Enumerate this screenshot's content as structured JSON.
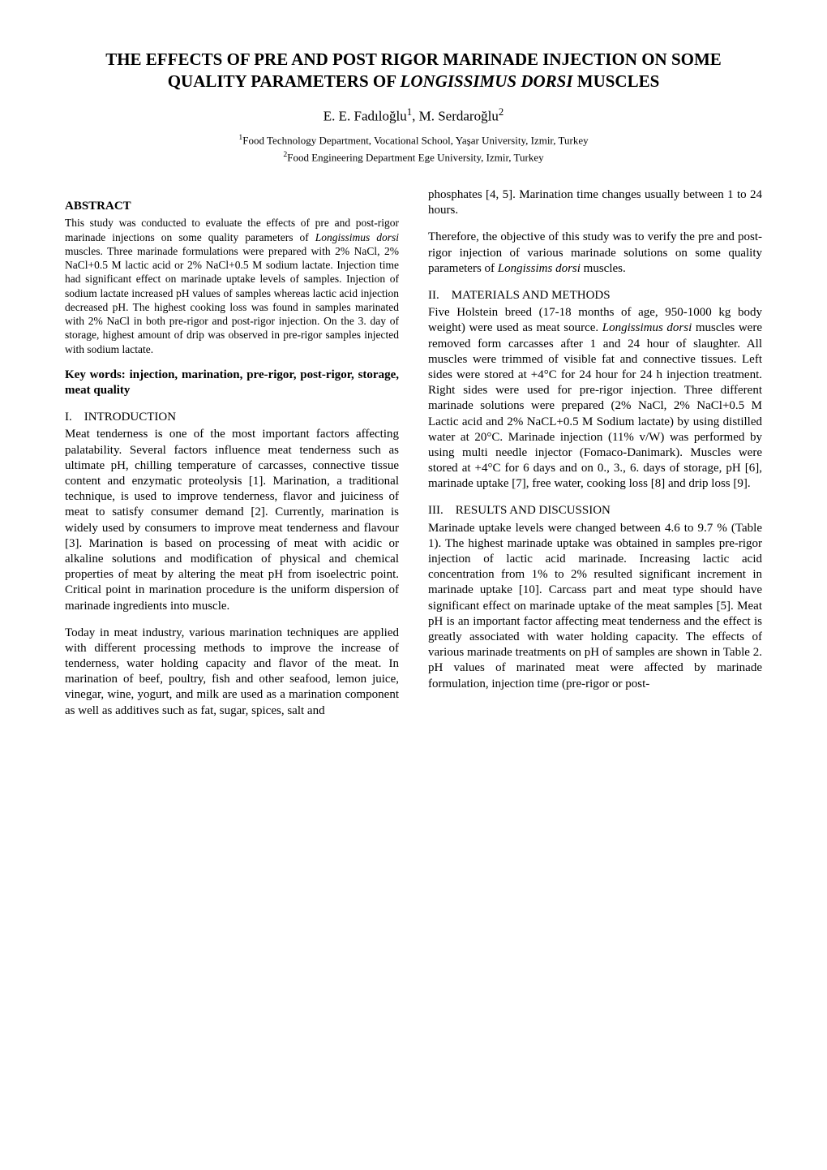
{
  "title": "THE EFFECTS OF PRE AND POST RIGOR MARINADE INJECTION ON SOME QUALITY PARAMETERS OF LONGISSIMUS DORSI MUSCLES",
  "title_italic_segment": "LONGISSIMUS DORSI",
  "authors_html": "E. E. Fadıloğlu<sup>1</sup>, M. Serdaroğlu<sup>2</sup>",
  "affiliations": [
    "<sup>1</sup>Food Technology Department, Vocational School, Yaşar University, Izmir, Turkey",
    "<sup>2</sup>Food Engineering Department Ege University, Izmir, Turkey"
  ],
  "left": {
    "abstract_label": "ABSTRACT",
    "abstract_html": "This study was conducted to evaluate the effects of pre and post-rigor marinade injections on some quality parameters of <em>Longissimus dorsi</em> muscles. Three marinade formulations were prepared with 2% NaCl, 2% NaCl+0.5 M lactic acid or 2% NaCl+0.5 M sodium lactate. Injection time had significant effect on marinade uptake levels of samples. Injection of sodium lactate increased pH values of samples whereas lactic acid injection decreased pH. The highest cooking loss was found in samples marinated with 2% NaCl in both pre-rigor and post-rigor injection. On the 3. day of storage, highest amount of drip was observed in pre-rigor samples injected with sodium lactate.",
    "keywords": "Key words: injection, marination, pre-rigor, post-rigor, storage, meat quality",
    "intro_head": "I. INTRODUCTION",
    "intro_p1": "Meat tenderness is one of the most important factors affecting palatability. Several factors influence meat tenderness such as ultimate pH, chilling temperature of carcasses, connective tissue content and enzymatic proteolysis [1]. Marination, a traditional technique, is used to improve tenderness, flavor and juiciness of meat to satisfy consumer demand [2]. Currently, marination is widely used by consumers to improve meat tenderness and flavour [3]. Marination is based on processing of meat with acidic or alkaline solutions and modification of physical and chemical properties of meat by altering the meat pH from isoelectric point. Critical point in marination procedure is the uniform dispersion of marinade ingredients into muscle.",
    "intro_p2": "Today in meat industry, various marination techniques are applied with different processing methods to improve the increase of tenderness, water holding capacity and flavor of the meat. In marination of beef, poultry, fish and other seafood, lemon juice, vinegar, wine, yogurt, and milk are used as a marination component as well as additives such as fat, sugar, spices, salt and"
  },
  "right": {
    "cont_p1": "phosphates [4, 5]. Marination time changes usually between 1 to 24 hours.",
    "cont_p2_html": "Therefore, the objective of this study was to verify the pre and post-rigor injection of various marinade solutions on some quality parameters of <em>Longissims dorsi</em> muscles.",
    "methods_head": "II. MATERIALS AND METHODS",
    "methods_p1_html": "Five Holstein breed (17-18 months of age, 950-1000 kg body weight) were used as meat source. <em>Longissimus dorsi</em> muscles were removed form carcasses after 1 and 24 hour of slaughter. All muscles were trimmed of visible fat and connective tissues. Left sides were stored at +4°C for 24 hour for 24 h injection treatment. Right sides were used for pre-rigor injection. Three different marinade solutions were prepared (2% NaCl, 2% NaCl+0.5 M Lactic acid and 2% NaCL+0.5 M Sodium lactate) by using distilled water at 20°C. Marinade injection (11% v/W) was performed by using multi needle injector (Fomaco-Danimark). Muscles were stored at +4°C for 6 days and on 0., 3., 6. days of storage, pH [6], marinade uptake [7], free water, cooking loss [8] and drip loss [9].",
    "results_head": "III. RESULTS AND DISCUSSION",
    "results_p1": "Marinade uptake levels were changed between 4.6 to 9.7 % (Table 1). The highest marinade uptake was obtained in samples pre-rigor injection of lactic acid marinade. Increasing lactic acid concentration from 1% to 2% resulted significant increment in marinade uptake [10]. Carcass part and meat type should have significant effect on marinade uptake of the meat samples [5]. Meat pH is an important factor affecting meat tenderness and the effect is greatly associated with water holding capacity. The effects of various marinade treatments on pH of samples are shown in Table 2. pH values of marinated meat were affected by marinade formulation, injection time (pre-rigor or post-"
  }
}
